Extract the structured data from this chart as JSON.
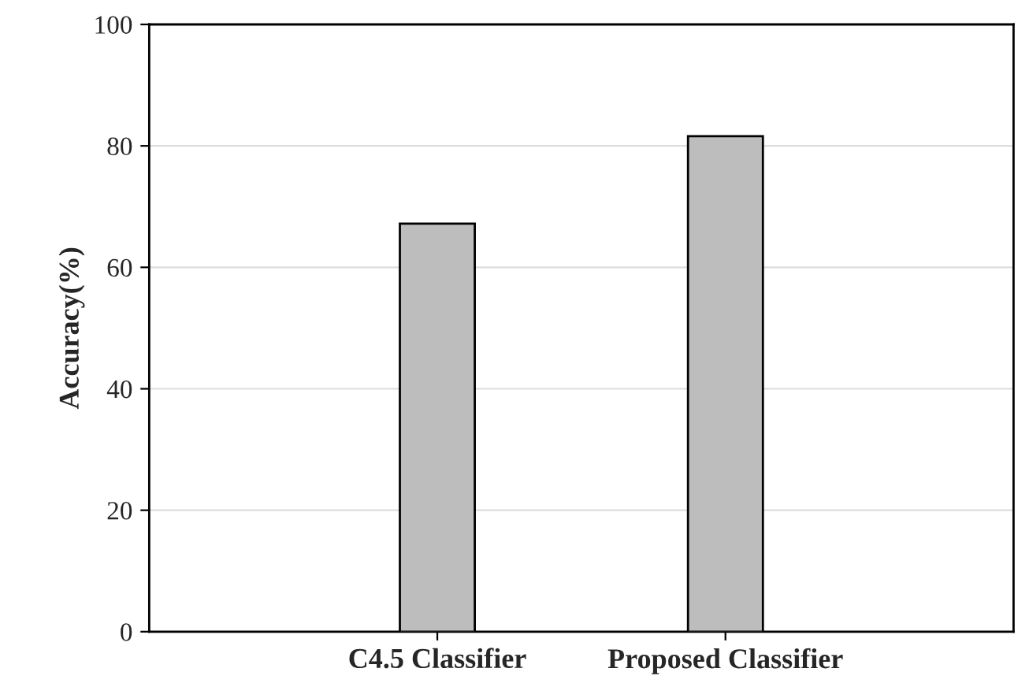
{
  "chart_data": {
    "type": "bar",
    "ylabel": "Accuracy(%)",
    "categories": [
      "C4.5 Classifier",
      "Proposed Classifier"
    ],
    "values": [
      67.2,
      81.6
    ],
    "color": "#bdbdbd",
    "ylim": [
      0,
      100
    ],
    "yticks": [
      0,
      20,
      40,
      60,
      80,
      100
    ],
    "grid": "y"
  }
}
